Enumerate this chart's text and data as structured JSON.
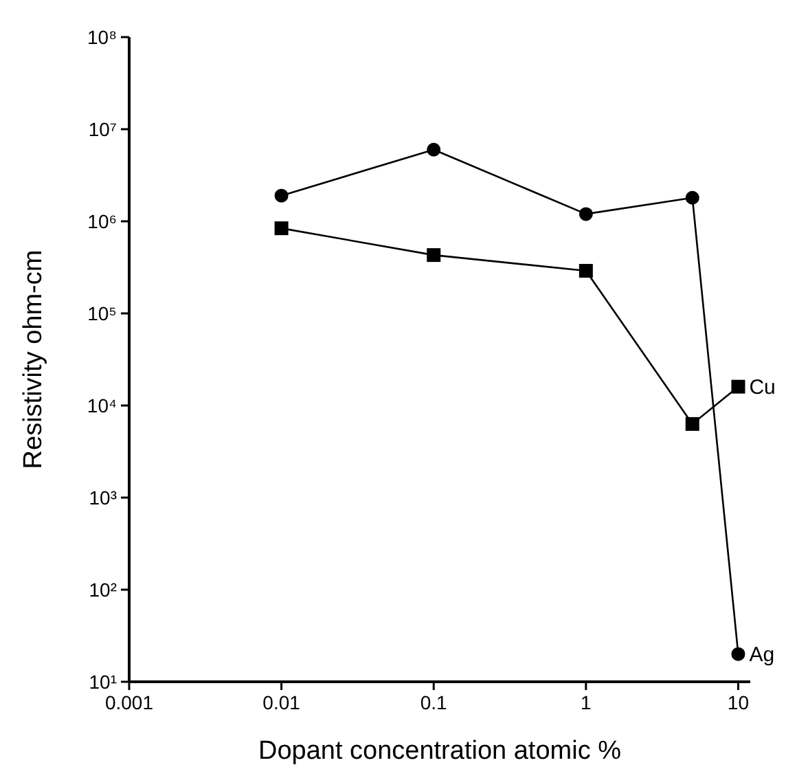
{
  "chart_data": {
    "type": "line",
    "xlabel": "Dopant concentration atomic %",
    "ylabel": "Resistivity ohm-cm",
    "log": "xy",
    "grid": false,
    "line_style": "solid",
    "xlim": [
      0.001,
      12
    ],
    "xticks": [
      0.001,
      0.01,
      0.1,
      1,
      10
    ],
    "ylim": [
      10,
      100000000
    ],
    "yticks": [
      {
        "value": 10,
        "label": "10¹"
      },
      {
        "value": 100,
        "label": "10²"
      },
      {
        "value": 1000,
        "label": "10³"
      },
      {
        "value": 10000,
        "label": "10⁴"
      },
      {
        "value": 100000,
        "label": "10⁵"
      },
      {
        "value": 1000000,
        "label": "10⁶"
      },
      {
        "value": 10000000,
        "label": "10⁷"
      },
      {
        "value": 100000000,
        "label": "10⁸"
      }
    ],
    "x": [
      0.01,
      0.1,
      1,
      5,
      10
    ],
    "series": [
      {
        "name": "Ag",
        "color": "#000000",
        "marker": "circle",
        "values": [
          1900000,
          6000000,
          1200000,
          1800000,
          20
        ]
      },
      {
        "name": "Cu",
        "color": "#000000",
        "marker": "square",
        "values": [
          840000,
          430000,
          290000,
          6300,
          16000
        ]
      }
    ]
  }
}
